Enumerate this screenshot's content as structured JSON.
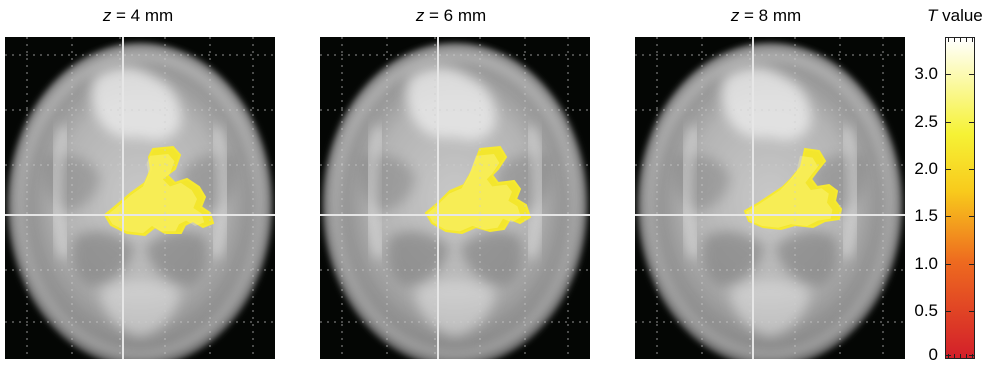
{
  "panels": [
    {
      "variable": "z",
      "label": " = 4 mm"
    },
    {
      "variable": "z",
      "label": " = 6 mm"
    },
    {
      "variable": "z",
      "label": " = 8 mm"
    }
  ],
  "colorbar": {
    "variable": "T",
    "label": " value",
    "ticks": [
      "3.0",
      "2.5",
      "2.0",
      "1.5",
      "1.0",
      "0.5",
      "0"
    ],
    "colors": {
      "low": "#d31f2a",
      "mid_low": "#ee6a1f",
      "mid": "#f8ca1c",
      "high": "#f6f235",
      "top": "#ffffff"
    }
  },
  "colors": {
    "background": "#040604",
    "brain_light": "#d7d7d7",
    "brain_dark": "#7a7a7a",
    "activation": "#f3e62d",
    "crosshair": "#e6e6e6"
  }
}
